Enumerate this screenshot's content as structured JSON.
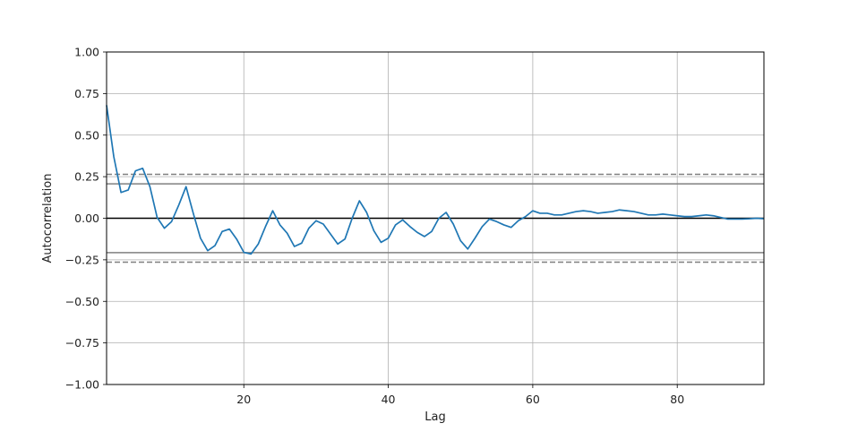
{
  "chart_data": {
    "type": "line",
    "title": "",
    "xlabel": "Lag",
    "ylabel": "Autocorrelation",
    "xlim": [
      1,
      92
    ],
    "ylim": [
      -1.0,
      1.0
    ],
    "x_ticks": [
      20,
      40,
      60,
      80
    ],
    "y_ticks": [
      1.0,
      0.75,
      0.5,
      0.25,
      0.0,
      -0.25,
      -0.5,
      -0.75,
      -1.0
    ],
    "x_tick_labels": [
      "20",
      "40",
      "60",
      "80"
    ],
    "y_tick_labels": [
      "1.00",
      "0.75",
      "0.50",
      "0.25",
      "0.00",
      "−0.25",
      "−0.50",
      "−0.75",
      "−1.00"
    ],
    "grid": true,
    "confidence_bands": {
      "solid": [
        0.207,
        -0.207
      ],
      "dashed": [
        0.264,
        -0.264
      ]
    },
    "zero_line": 0.0,
    "series": [
      {
        "color": "#1f77b4",
        "x": [
          1,
          2,
          3,
          4,
          5,
          6,
          7,
          8,
          9,
          10,
          11,
          12,
          13,
          14,
          15,
          16,
          17,
          18,
          19,
          20,
          21,
          22,
          23,
          24,
          25,
          26,
          27,
          28,
          29,
          30,
          31,
          32,
          33,
          34,
          35,
          36,
          37,
          38,
          39,
          40,
          41,
          42,
          43,
          44,
          45,
          46,
          47,
          48,
          49,
          50,
          51,
          52,
          53,
          54,
          55,
          56,
          57,
          58,
          59,
          60,
          61,
          62,
          63,
          64,
          65,
          66,
          67,
          68,
          69,
          70,
          71,
          72,
          73,
          74,
          75,
          76,
          77,
          78,
          79,
          80,
          81,
          82,
          83,
          84,
          85,
          86,
          87,
          88,
          89,
          90,
          91,
          92
        ],
        "values": [
          0.68,
          0.37,
          0.155,
          0.17,
          0.285,
          0.3,
          0.19,
          0.005,
          -0.06,
          -0.02,
          0.08,
          0.19,
          0.03,
          -0.12,
          -0.195,
          -0.165,
          -0.08,
          -0.065,
          -0.125,
          -0.205,
          -0.215,
          -0.155,
          -0.05,
          0.045,
          -0.04,
          -0.09,
          -0.17,
          -0.15,
          -0.06,
          -0.015,
          -0.035,
          -0.095,
          -0.155,
          -0.125,
          0.0,
          0.105,
          0.035,
          -0.075,
          -0.145,
          -0.12,
          -0.04,
          -0.01,
          -0.05,
          -0.085,
          -0.11,
          -0.08,
          0.0,
          0.035,
          -0.035,
          -0.135,
          -0.185,
          -0.12,
          -0.05,
          -0.005,
          -0.02,
          -0.04,
          -0.055,
          -0.015,
          0.01,
          0.045,
          0.03,
          0.03,
          0.02,
          0.02,
          0.03,
          0.04,
          0.045,
          0.04,
          0.03,
          0.035,
          0.04,
          0.05,
          0.045,
          0.04,
          0.03,
          0.02,
          0.02,
          0.025,
          0.02,
          0.015,
          0.01,
          0.01,
          0.015,
          0.02,
          0.015,
          0.005,
          -0.005,
          -0.005,
          -0.005,
          -0.003,
          0.0,
          -0.003
        ]
      }
    ]
  }
}
